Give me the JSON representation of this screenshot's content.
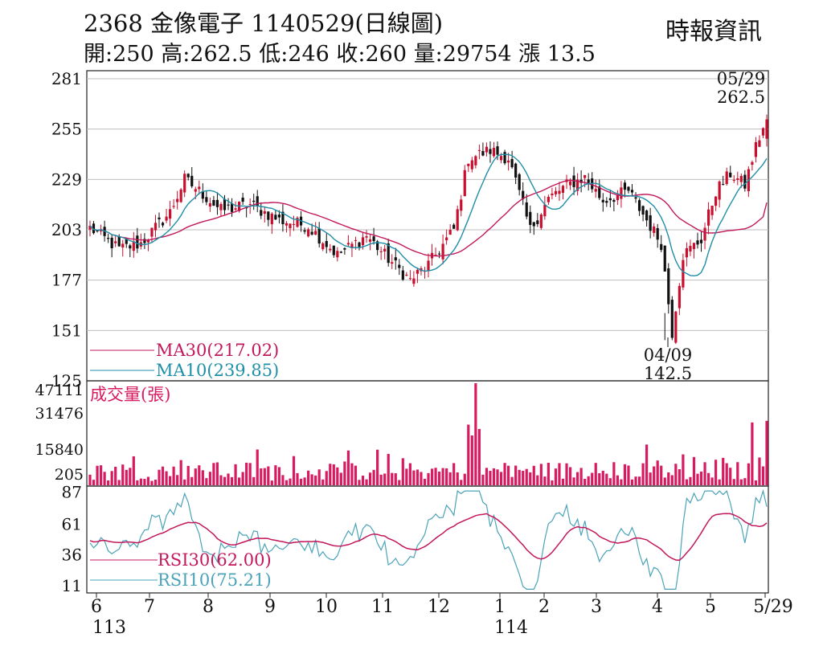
{
  "header": {
    "title": "2368  金像電子 1140529(日線圖)",
    "stats": "開:250 高:262.5 低:246 收:260 量:29754 漲 13.5",
    "source": "時報資訊"
  },
  "colors": {
    "up": "#c8102e",
    "down": "#111111",
    "ma30": "#c2185b",
    "ma10": "#1f8fa8",
    "volume": "#d81b60",
    "rsi30": "#c2185b",
    "rsi10": "#4aa3b8",
    "grid": "#bdbdbd"
  },
  "chart_data": [
    {
      "type": "candlestick",
      "name": "price",
      "ylim": [
        125,
        281
      ],
      "y_ticks": [
        "281",
        "255",
        "229",
        "203",
        "177",
        "151",
        "125"
      ],
      "x_month_labels": [
        "6",
        "7",
        "8",
        "9",
        "10",
        "11",
        "12",
        "1",
        "2",
        "3",
        "4",
        "5",
        "5/29"
      ],
      "x_year_labels": [
        "113",
        "114"
      ],
      "legend": [
        {
          "label": "MA30(217.02)",
          "color": "#c2185b"
        },
        {
          "label": "MA10(239.85)",
          "color": "#1f8fa8"
        }
      ],
      "annotations": {
        "high": {
          "date": "05/29",
          "value": "262.5"
        },
        "low": {
          "date": "04/09",
          "value": "142.5"
        }
      },
      "close_keypoints": [
        [
          0,
          204
        ],
        [
          8,
          193
        ],
        [
          14,
          196
        ],
        [
          22,
          212
        ],
        [
          26,
          229
        ],
        [
          30,
          223
        ],
        [
          36,
          213
        ],
        [
          44,
          216
        ],
        [
          52,
          208
        ],
        [
          60,
          205
        ],
        [
          68,
          190
        ],
        [
          76,
          200
        ],
        [
          82,
          188
        ],
        [
          88,
          177
        ],
        [
          93,
          185
        ],
        [
          100,
          203
        ],
        [
          104,
          240
        ],
        [
          110,
          244
        ],
        [
          115,
          240
        ],
        [
          121,
          203
        ],
        [
          126,
          219
        ],
        [
          131,
          226
        ],
        [
          136,
          230
        ],
        [
          141,
          218
        ],
        [
          148,
          223
        ],
        [
          154,
          205
        ],
        [
          157,
          196
        ],
        [
          160,
          150
        ],
        [
          163,
          190
        ],
        [
          168,
          198
        ],
        [
          172,
          223
        ],
        [
          176,
          232
        ],
        [
          180,
          226
        ],
        [
          183,
          246
        ],
        [
          186,
          260
        ]
      ],
      "last": {
        "open": 250,
        "high": 262.5,
        "low": 246,
        "close": 260
      },
      "ma30_last": 217.02,
      "ma10_last": 239.85
    },
    {
      "type": "bar",
      "name": "volume",
      "title": "成交量(張)",
      "y_ticks": [
        "47111",
        "31476",
        "15840",
        "205"
      ],
      "ylim": [
        205,
        47111
      ],
      "spikes": [
        [
          104,
          28000
        ],
        [
          105,
          23000
        ],
        [
          106,
          47111
        ],
        [
          107,
          26000
        ],
        [
          182,
          29000
        ],
        [
          186,
          29754
        ]
      ],
      "last_value": 29754
    },
    {
      "type": "line",
      "name": "rsi",
      "y_ticks": [
        "87",
        "61",
        "36",
        "11"
      ],
      "ylim": [
        5,
        92
      ],
      "legend": [
        {
          "label": "RSI30(62.00)",
          "color": "#c2185b"
        },
        {
          "label": "RSI10(75.21)",
          "color": "#4aa3b8"
        }
      ],
      "rsi30_last": 62.0,
      "rsi10_last": 75.21
    }
  ]
}
